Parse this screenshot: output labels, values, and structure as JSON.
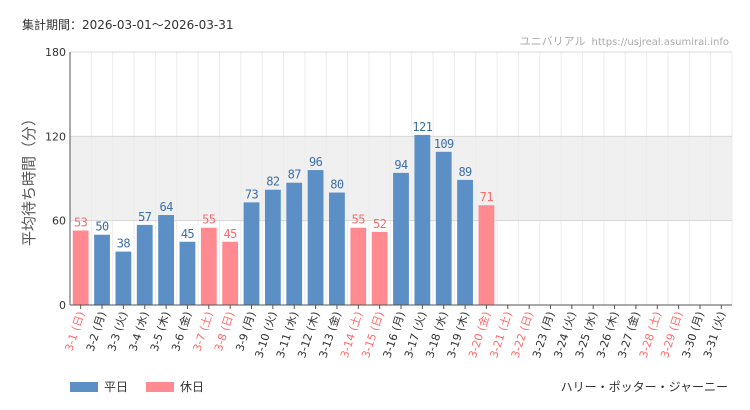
{
  "header": {
    "period": "集計期間：2026-03-01～2026-03-31",
    "site_name": "ユニバリアル",
    "site_url": "https://usjreal.asumirai.info"
  },
  "colors": {
    "weekday": "#5b8fc6",
    "holiday": "#ff8a8f",
    "holiday_label": "#ff6b6b",
    "band": "#f0f0f0",
    "grid": "#d8d8d8"
  },
  "legend": {
    "weekday_label": "平日",
    "holiday_label": "休日"
  },
  "attraction": "ハリー・ポッター・ジャーニー",
  "chart_data": {
    "type": "bar",
    "title": "",
    "xlabel": "",
    "ylabel": "平均待ち時間（分）",
    "ylim": [
      0,
      180
    ],
    "yticks": [
      "0",
      "60",
      "120",
      "180"
    ],
    "shaded_band": [
      60,
      120
    ],
    "categories": [
      "3-1 (日)",
      "3-2 (月)",
      "3-3 (火)",
      "3-4 (水)",
      "3-5 (木)",
      "3-6 (金)",
      "3-7 (土)",
      "3-8 (日)",
      "3-9 (月)",
      "3-10 (火)",
      "3-11 (水)",
      "3-12 (木)",
      "3-13 (金)",
      "3-14 (土)",
      "3-15 (日)",
      "3-16 (月)",
      "3-17 (火)",
      "3-18 (水)",
      "3-19 (木)",
      "3-20 (金)",
      "3-21 (土)",
      "3-22 (日)",
      "3-23 (月)",
      "3-24 (火)",
      "3-25 (水)",
      "3-26 (木)",
      "3-27 (金)",
      "3-28 (土)",
      "3-29 (日)",
      "3-30 (月)",
      "3-31 (火)"
    ],
    "values": [
      53,
      50,
      38,
      57,
      64,
      45,
      55,
      45,
      73,
      82,
      87,
      96,
      80,
      55,
      52,
      94,
      121,
      109,
      89,
      71,
      null,
      null,
      null,
      null,
      null,
      null,
      null,
      null,
      null,
      null,
      null
    ],
    "holiday": [
      true,
      false,
      false,
      false,
      false,
      false,
      true,
      true,
      false,
      false,
      false,
      false,
      false,
      true,
      true,
      false,
      false,
      false,
      false,
      true,
      true,
      true,
      false,
      false,
      false,
      false,
      false,
      true,
      true,
      false,
      false
    ],
    "series": [
      {
        "name": "平日",
        "color": "#5b8fc6"
      },
      {
        "name": "休日",
        "color": "#ff8a8f"
      }
    ]
  }
}
